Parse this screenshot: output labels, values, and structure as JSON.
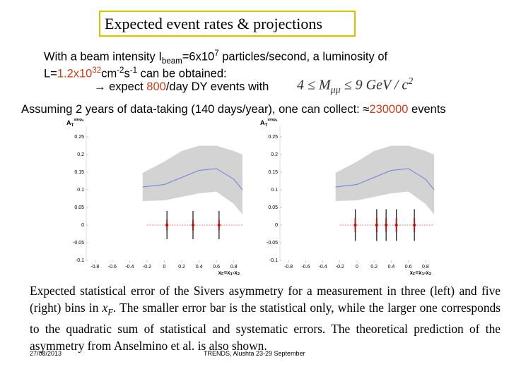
{
  "header": {
    "title": "Expected event rates & projections"
  },
  "lines": [
    [
      {
        "text": "With a beam intensity I"
      },
      {
        "text": "beam",
        "style": "sub"
      },
      {
        "text": "=6x10"
      },
      {
        "text": "7",
        "style": "sup"
      },
      {
        "text": " particles/second, a luminosity of"
      }
    ],
    [
      {
        "text": "L="
      },
      {
        "text": "1.2x10",
        "color": "#c8401c"
      },
      {
        "text": "32",
        "style": "sup",
        "color": "#c8401c"
      },
      {
        "text": "cm"
      },
      {
        "text": "-2",
        "style": "sup"
      },
      {
        "text": "s"
      },
      {
        "text": "-1",
        "style": "sup"
      },
      {
        "text": " can be obtained:"
      }
    ],
    [
      {
        "text": "→ expect "
      },
      {
        "text": "800",
        "color": "#c8401c"
      },
      {
        "text": "/day DY events with"
      }
    ],
    [
      {
        "text": "Assuming 2 years of data-taking (140 days/year), one can collect: ≈"
      },
      {
        "text": "230000",
        "color": "#c8401c"
      },
      {
        "text": " events"
      }
    ]
  ],
  "formula": [
    {
      "text": "4 ≤ M"
    },
    {
      "text": "μμ",
      "style": "sub"
    },
    {
      "text": " ≤ 9 GeV / c"
    },
    {
      "text": "2",
      "style": "sup"
    }
  ],
  "caption": [
    {
      "text": "Expected statistical error of the Sivers asymmetry for a measurement in three (left) and five (right) bins in "
    },
    {
      "text": "x",
      "italic": true
    },
    {
      "text": "F",
      "style": "sub",
      "italic": true
    },
    {
      "text": ". The smaller error bar is the statistical only, while the larger one corresponds to the quadratic sum of statistical and systematic errors. The theoretical prediction of the asymmetry from Anselmino et al. is also shown."
    }
  ],
  "footer": {
    "date": "27/08/2013",
    "event": "TRENDS, Alushta 23-29 September"
  },
  "chart_data": [
    {
      "type": "errorbar",
      "y_label": [
        {
          "text": "A"
        },
        {
          "text": "T",
          "style": "sub"
        },
        {
          "text": "sinφ",
          "style": "sup"
        },
        {
          "text": "s",
          "style": "sup-sub"
        }
      ],
      "x_label": [
        {
          "text": "x"
        },
        {
          "text": "F",
          "style": "sub"
        },
        {
          "text": "=x"
        },
        {
          "text": "1",
          "style": "sub"
        },
        {
          "text": "-x"
        },
        {
          "text": "2",
          "style": "sub"
        }
      ],
      "xlim": [
        -0.9,
        0.9
      ],
      "ylim": [
        -0.1,
        0.28
      ],
      "xticks": [
        -0.8,
        -0.6,
        -0.4,
        -0.2,
        0,
        0.2,
        0.4,
        0.6,
        0.8
      ],
      "yticks": [
        -0.1,
        -0.05,
        0,
        0.05,
        0.1,
        0.15,
        0.2,
        0.25
      ],
      "baseline": 0,
      "points": {
        "x": [
          0.03,
          0.33,
          0.63
        ],
        "values": [
          0,
          0,
          0
        ],
        "stat_error": [
          0.015,
          0.015,
          0.015
        ],
        "total_error": [
          0.04,
          0.04,
          0.04
        ],
        "color": "#b01818"
      },
      "theory": {
        "x": [
          -0.25,
          0,
          0.2,
          0.4,
          0.6,
          0.8,
          0.9
        ],
        "center": [
          0.108,
          0.115,
          0.135,
          0.155,
          0.16,
          0.13,
          0.1
        ],
        "upper": [
          0.148,
          0.18,
          0.21,
          0.225,
          0.225,
          0.21,
          0.2
        ],
        "lower": [
          0.068,
          0.07,
          0.08,
          0.09,
          0.095,
          0.06,
          0.03
        ],
        "color": "#6f7fd6",
        "band_color": "#d3d3d3"
      }
    },
    {
      "type": "errorbar",
      "y_label": [
        {
          "text": "A"
        },
        {
          "text": "T",
          "style": "sub"
        },
        {
          "text": "sinφ",
          "style": "sup"
        },
        {
          "text": "s",
          "style": "sup-sub"
        }
      ],
      "x_label": [
        {
          "text": "x"
        },
        {
          "text": "F",
          "style": "sub"
        },
        {
          "text": "=x"
        },
        {
          "text": "1",
          "style": "sub"
        },
        {
          "text": "-x"
        },
        {
          "text": "2",
          "style": "sub"
        }
      ],
      "xlim": [
        -0.9,
        0.9
      ],
      "ylim": [
        -0.1,
        0.28
      ],
      "xticks": [
        -0.8,
        -0.6,
        -0.4,
        -0.2,
        0,
        0.2,
        0.4,
        0.6,
        0.8
      ],
      "yticks": [
        -0.1,
        -0.05,
        0,
        0.05,
        0.1,
        0.15,
        0.2,
        0.25
      ],
      "baseline": 0,
      "points": {
        "x": [
          -0.02,
          0.23,
          0.34,
          0.46,
          0.67
        ],
        "values": [
          0,
          0,
          0,
          0,
          0
        ],
        "stat_error": [
          0.02,
          0.02,
          0.02,
          0.02,
          0.02
        ],
        "total_error": [
          0.045,
          0.045,
          0.045,
          0.045,
          0.045
        ],
        "color": "#b01818"
      },
      "theory": {
        "x": [
          -0.25,
          0,
          0.2,
          0.4,
          0.6,
          0.8,
          0.9
        ],
        "center": [
          0.108,
          0.115,
          0.135,
          0.155,
          0.16,
          0.13,
          0.1
        ],
        "upper": [
          0.148,
          0.18,
          0.21,
          0.225,
          0.225,
          0.21,
          0.2
        ],
        "lower": [
          0.068,
          0.07,
          0.08,
          0.09,
          0.095,
          0.06,
          0.03
        ],
        "color": "#6f7fd6",
        "band_color": "#d3d3d3"
      }
    }
  ]
}
